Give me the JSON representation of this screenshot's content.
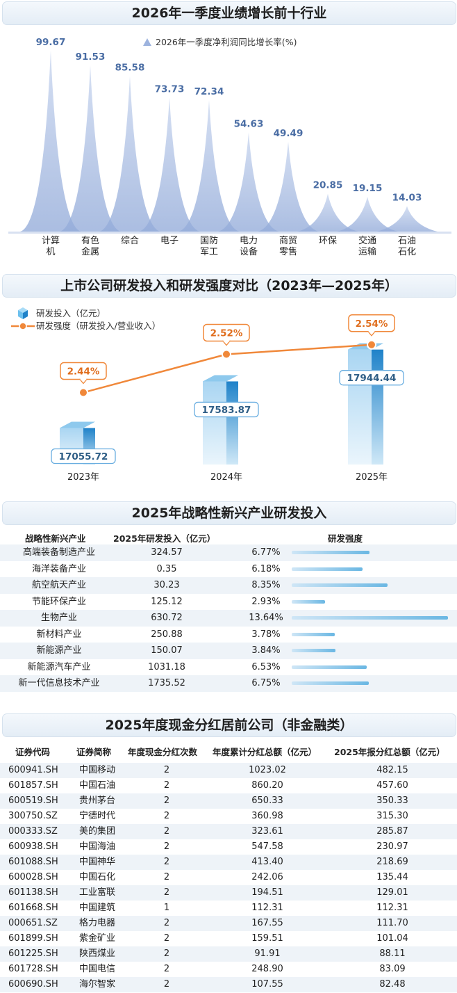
{
  "section1": {
    "title": "2026年一季度业绩增长前十行业",
    "legend": "2026年一季度净利润同比增长率(%)"
  },
  "section2": {
    "title": "上市公司研发投入和研发强度对比（2023年—2025年）",
    "legend_bar": "研发投入（亿元）",
    "legend_line": "研发强度（研发投入/营业收入）"
  },
  "section3": {
    "title": "2025年战略性新兴产业研发投入",
    "headers": [
      "战略性新兴产业",
      "2025年研发投入（亿元）",
      "研发强度"
    ]
  },
  "section4": {
    "title": "2025年度现金分红居前公司（非金融类）",
    "headers": [
      "证券代码",
      "证券简称",
      "年度现金分红次数",
      "年度累计分红总额（亿元）",
      "2025年报分红总额（亿元）"
    ],
    "rows": [
      [
        "600941.SH",
        "中国移动",
        "2",
        "1023.02",
        "482.15"
      ],
      [
        "601857.SH",
        "中国石油",
        "2",
        "860.20",
        "457.60"
      ],
      [
        "600519.SH",
        "贵州茅台",
        "2",
        "650.33",
        "350.33"
      ],
      [
        "300750.SZ",
        "宁德时代",
        "2",
        "360.98",
        "315.30"
      ],
      [
        "000333.SZ",
        "美的集团",
        "2",
        "323.61",
        "285.87"
      ],
      [
        "600938.SH",
        "中国海油",
        "2",
        "547.58",
        "230.97"
      ],
      [
        "601088.SH",
        "中国神华",
        "2",
        "413.40",
        "218.69"
      ],
      [
        "600028.SH",
        "中国石化",
        "2",
        "242.06",
        "135.44"
      ],
      [
        "601138.SH",
        "工业富联",
        "2",
        "194.51",
        "129.01"
      ],
      [
        "601668.SH",
        "中国建筑",
        "1",
        "112.31",
        "112.31"
      ],
      [
        "000651.SZ",
        "格力电器",
        "2",
        "167.55",
        "111.70"
      ],
      [
        "601899.SH",
        "紫金矿业",
        "2",
        "159.51",
        "101.04"
      ],
      [
        "601225.SH",
        "陕西煤业",
        "2",
        "91.91",
        "88.11"
      ],
      [
        "601728.SH",
        "中国电信",
        "2",
        "248.90",
        "83.09"
      ],
      [
        "600690.SH",
        "海尔智家",
        "2",
        "107.55",
        "82.48"
      ]
    ]
  },
  "chart_data": [
    {
      "type": "area",
      "title": "2026年一季度业绩增长前十行业",
      "categories": [
        [
          "计算",
          "机"
        ],
        [
          "有色",
          "金属"
        ],
        [
          "综合"
        ],
        [
          "电子"
        ],
        [
          "国防",
          "军工"
        ],
        [
          "电力",
          "设备"
        ],
        [
          "商贸",
          "零售"
        ],
        [
          "环保"
        ],
        [
          "交通",
          "运输"
        ],
        [
          "石油",
          "石化"
        ]
      ],
      "series": [
        {
          "name": "2026年一季度净利润同比增长率(%)",
          "values": [
            99.67,
            91.53,
            85.58,
            73.73,
            72.34,
            54.63,
            49.49,
            20.85,
            19.15,
            14.03
          ]
        }
      ],
      "labels": [
        "99.67",
        "91.53",
        "85.58",
        "73.73",
        "72.34",
        "54.63",
        "49.49",
        "20.85",
        "19.15",
        "14.03"
      ],
      "colors": [
        "#a9bde3",
        "#8ea8d8"
      ]
    },
    {
      "type": "bar",
      "title": "上市公司研发投入和研发强度对比（2023年—2025年）",
      "categories": [
        "2023年",
        "2024年",
        "2025年"
      ],
      "series": [
        {
          "name": "研发投入（亿元）",
          "values": [
            17055.72,
            17583.87,
            17944.44
          ],
          "labels": [
            "17055.72",
            "17583.87",
            "17944.44"
          ]
        },
        {
          "name": "研发强度（研发投入/营业收入）",
          "values": [
            2.44,
            2.52,
            2.54
          ],
          "labels": [
            "2.44%",
            "2.52%",
            "2.54%"
          ]
        }
      ],
      "colors": [
        "#3b95d3",
        "#f0883a"
      ]
    },
    {
      "type": "table",
      "title": "2025年战略性新兴产业研发投入",
      "rows": [
        {
          "name": "高端装备制造产业",
          "investment": "324.57",
          "intensity": "6.77%",
          "value": 6.77
        },
        {
          "name": "海洋装备产业",
          "investment": "0.35",
          "intensity": "6.18%",
          "value": 6.18
        },
        {
          "name": "航空航天产业",
          "investment": "30.23",
          "intensity": "8.35%",
          "value": 8.35
        },
        {
          "name": "节能环保产业",
          "investment": "125.12",
          "intensity": "2.93%",
          "value": 2.93
        },
        {
          "name": "生物产业",
          "investment": "630.72",
          "intensity": "13.64%",
          "value": 13.64
        },
        {
          "name": "新材料产业",
          "investment": "250.88",
          "intensity": "3.78%",
          "value": 3.78
        },
        {
          "name": "新能源产业",
          "investment": "150.07",
          "intensity": "3.84%",
          "value": 3.84
        },
        {
          "name": "新能源汽车产业",
          "investment": "1031.18",
          "intensity": "6.53%",
          "value": 6.53
        },
        {
          "name": "新一代信息技术产业",
          "investment": "1735.52",
          "intensity": "6.75%",
          "value": 6.75
        }
      ],
      "bar_max": 13.64
    }
  ]
}
